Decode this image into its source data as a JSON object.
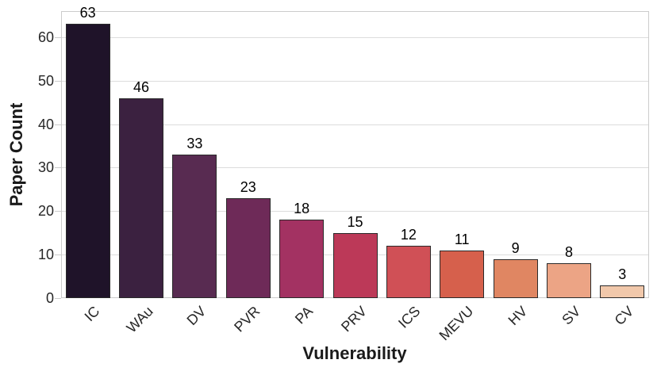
{
  "chart_data": {
    "type": "bar",
    "title": "",
    "xlabel": "Vulnerability",
    "ylabel": "Paper Count",
    "categories": [
      "IC",
      "WAu",
      "DV",
      "PVR",
      "PA",
      "PRV",
      "ICS",
      "MEVU",
      "HV",
      "SV",
      "CV"
    ],
    "values": [
      63,
      46,
      33,
      23,
      18,
      15,
      12,
      11,
      9,
      8,
      3
    ],
    "bar_colors": [
      "#1f1329",
      "#3b2140",
      "#582b51",
      "#6e2a58",
      "#a33262",
      "#bc3958",
      "#d05056",
      "#d6604c",
      "#e08662",
      "#eca485",
      "#f1c8ab"
    ],
    "yticks": [
      0,
      10,
      20,
      30,
      40,
      50,
      60
    ],
    "ylim": [
      0,
      66
    ],
    "grid": true,
    "legend": "none",
    "colors": {
      "bar_edge": "#2a2a2a",
      "grid": "#dcdcdc",
      "spine": "#cccccc",
      "tick_text": "#262626",
      "label_text": "#1a1a1a",
      "background": "#ffffff"
    }
  }
}
